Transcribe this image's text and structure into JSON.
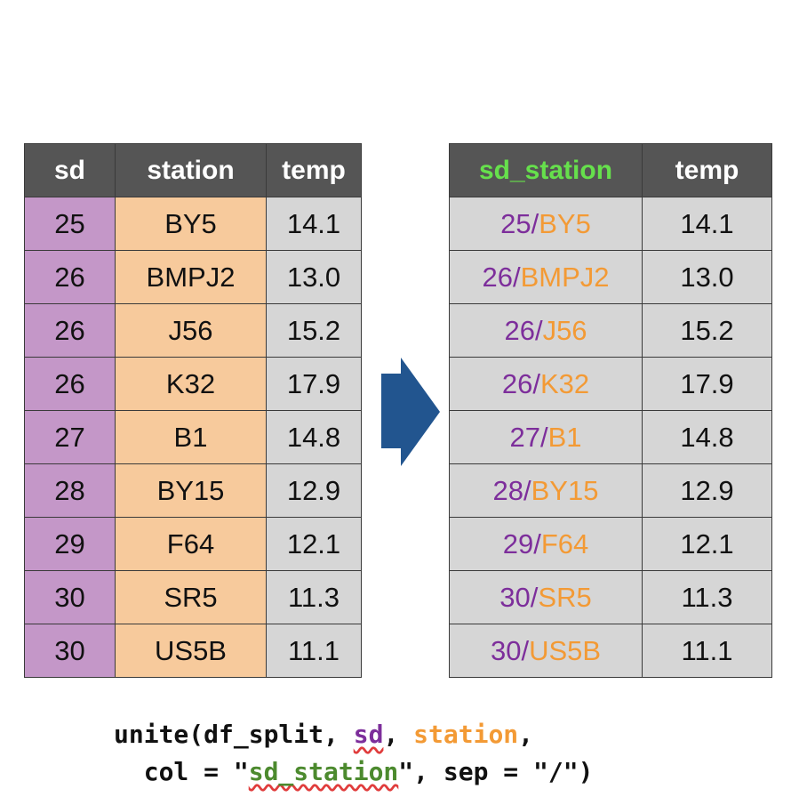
{
  "left_table": {
    "headers": [
      "sd",
      "station",
      "temp"
    ],
    "rows": [
      {
        "sd": "25",
        "station": "BY5",
        "temp": "14.1"
      },
      {
        "sd": "26",
        "station": "BMPJ2",
        "temp": "13.0"
      },
      {
        "sd": "26",
        "station": "J56",
        "temp": "15.2"
      },
      {
        "sd": "26",
        "station": "K32",
        "temp": "17.9"
      },
      {
        "sd": "27",
        "station": "B1",
        "temp": "14.8"
      },
      {
        "sd": "28",
        "station": "BY15",
        "temp": "12.9"
      },
      {
        "sd": "29",
        "station": "F64",
        "temp": "12.1"
      },
      {
        "sd": "30",
        "station": "SR5",
        "temp": "11.3"
      },
      {
        "sd": "30",
        "station": "US5B",
        "temp": "11.1"
      }
    ]
  },
  "right_table": {
    "headers": [
      "sd_station",
      "temp"
    ],
    "separator": "/"
  },
  "code": {
    "line1_prefix": "unite(df_split, ",
    "arg_sd": "sd",
    "comma1": ", ",
    "arg_station": "station",
    "line1_suffix": ",",
    "line2_prefix": "  col = \"",
    "arg_col": "sd_station",
    "line2_suffix": "\", sep = \"/\")"
  },
  "colors": {
    "sd": "#c497c8",
    "station": "#f7ca9c",
    "temp": "#d6d6d6",
    "header": "#555555",
    "arrow": "#22558f",
    "new_column_header": "#66e04c"
  }
}
